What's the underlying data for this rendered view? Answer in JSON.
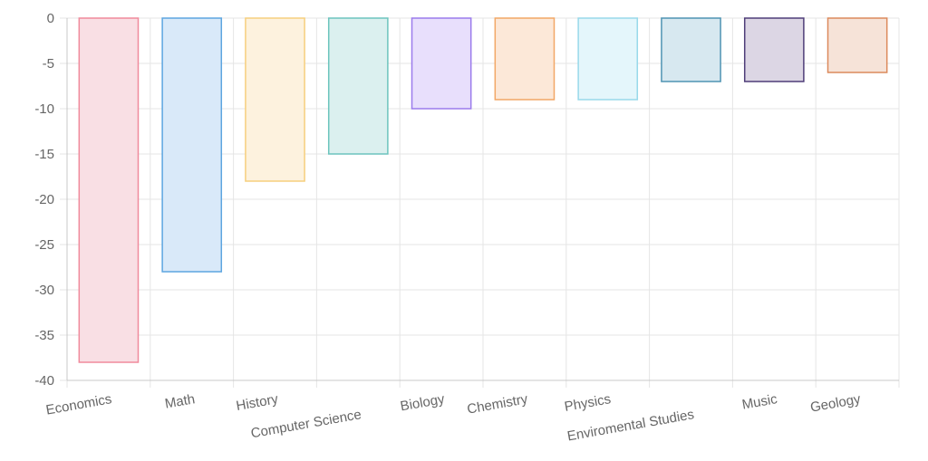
{
  "chart_data": {
    "type": "bar",
    "title": "",
    "xlabel": "",
    "ylabel": "",
    "categories": [
      "Economics",
      "Math",
      "History",
      "Computer Science",
      "Biology",
      "Chemistry",
      "Physics",
      "Enviromental Studies",
      "Music",
      "Geology"
    ],
    "values": [
      -38,
      -28,
      -18,
      -15,
      -10,
      -9,
      -9,
      -7,
      -7,
      -6
    ],
    "ylim": [
      -40,
      0
    ],
    "yticks": [
      0,
      -5,
      -10,
      -15,
      -20,
      -25,
      -30,
      -35,
      -40
    ],
    "grid": true,
    "legend": "none",
    "bar_colors": [
      {
        "fill": "#f9dfe4",
        "stroke": "#f08a9c"
      },
      {
        "fill": "#d9e9f9",
        "stroke": "#5da5e0"
      },
      {
        "fill": "#fdf2de",
        "stroke": "#f6cf7e"
      },
      {
        "fill": "#dbf0ef",
        "stroke": "#6cc4bd"
      },
      {
        "fill": "#e8dffc",
        "stroke": "#9b7bec"
      },
      {
        "fill": "#fce8d8",
        "stroke": "#f2a766"
      },
      {
        "fill": "#e4f6fb",
        "stroke": "#98d9ea"
      },
      {
        "fill": "#d7e8f0",
        "stroke": "#4f94b3"
      },
      {
        "fill": "#dcd6e4",
        "stroke": "#4e3d78"
      },
      {
        "fill": "#f6e3d8",
        "stroke": "#dc8a5c"
      }
    ],
    "grid_color": "#e5e5e5",
    "axis_color": "#c8c8c8",
    "text_color": "#666666"
  }
}
